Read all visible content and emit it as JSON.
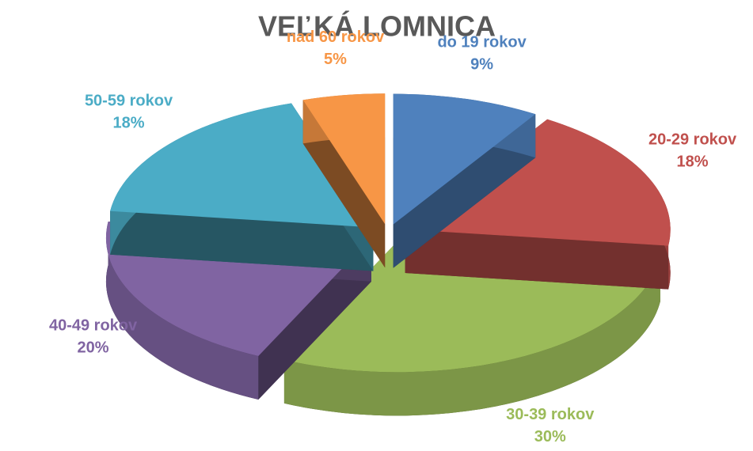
{
  "chart_data": {
    "type": "pie",
    "title": "VEĽKÁ LOMNICA",
    "categories": [
      "do 19 rokov",
      "20-29 rokov",
      "30-39 rokov",
      "40-49 rokov",
      "50-59 rokov",
      "nad 60 rokov"
    ],
    "values": [
      9,
      18,
      30,
      20,
      18,
      5
    ],
    "value_labels": [
      "9%",
      "18%",
      "30%",
      "20%",
      "18%",
      "5%"
    ],
    "colors": [
      "#4f81bd",
      "#c0504d",
      "#9bbb59",
      "#8064a2",
      "#4bacc6",
      "#f79646"
    ]
  }
}
